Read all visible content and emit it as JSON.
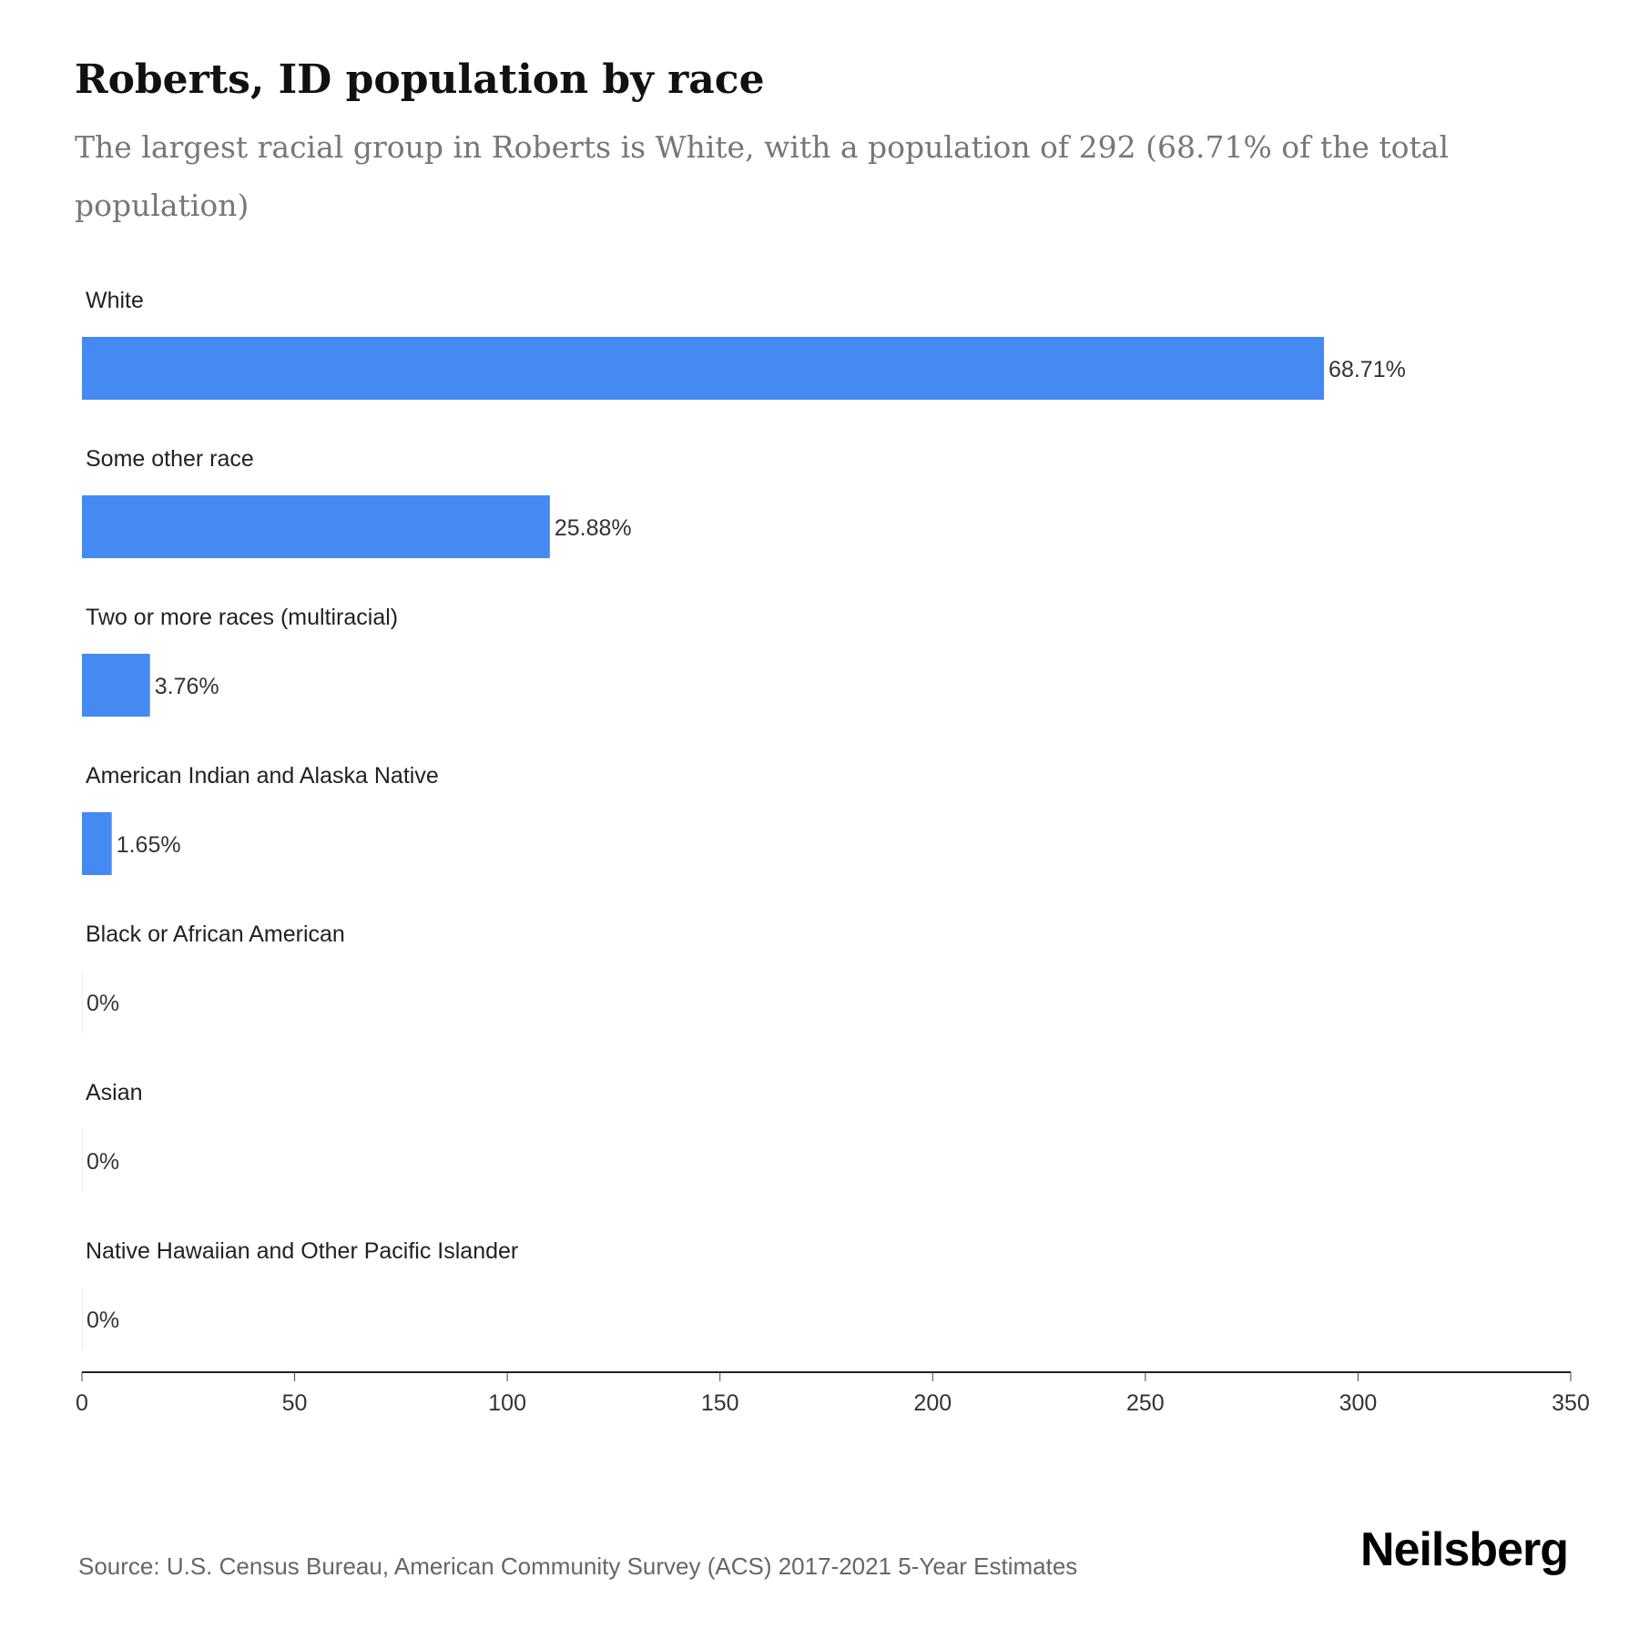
{
  "title": "Roberts, ID population by race",
  "subtitle": "The largest racial group in Roberts is White, with a population of 292 (68.71% of the total population)",
  "source": "Source: U.S. Census Bureau, American Community Survey (ACS) 2017-2021 5-Year Estimates",
  "logo": "Neilsberg",
  "chart_data": {
    "type": "bar",
    "orientation": "horizontal",
    "categories": [
      "White",
      "Some other race",
      "Two or more races (multiracial)",
      "American Indian and Alaska Native",
      "Black or African American",
      "Asian",
      "Native Hawaiian and Other Pacific Islander"
    ],
    "values": [
      292,
      110,
      16,
      7,
      0,
      0,
      0
    ],
    "data_labels": [
      "68.71%",
      "25.88%",
      "3.76%",
      "1.65%",
      "0%",
      "0%",
      "0%"
    ],
    "xlim": [
      0,
      350
    ],
    "xticks": [
      "0",
      "50",
      "100",
      "150",
      "200",
      "250",
      "300",
      "350"
    ],
    "bar_color": "#4589F3",
    "grid": false
  }
}
